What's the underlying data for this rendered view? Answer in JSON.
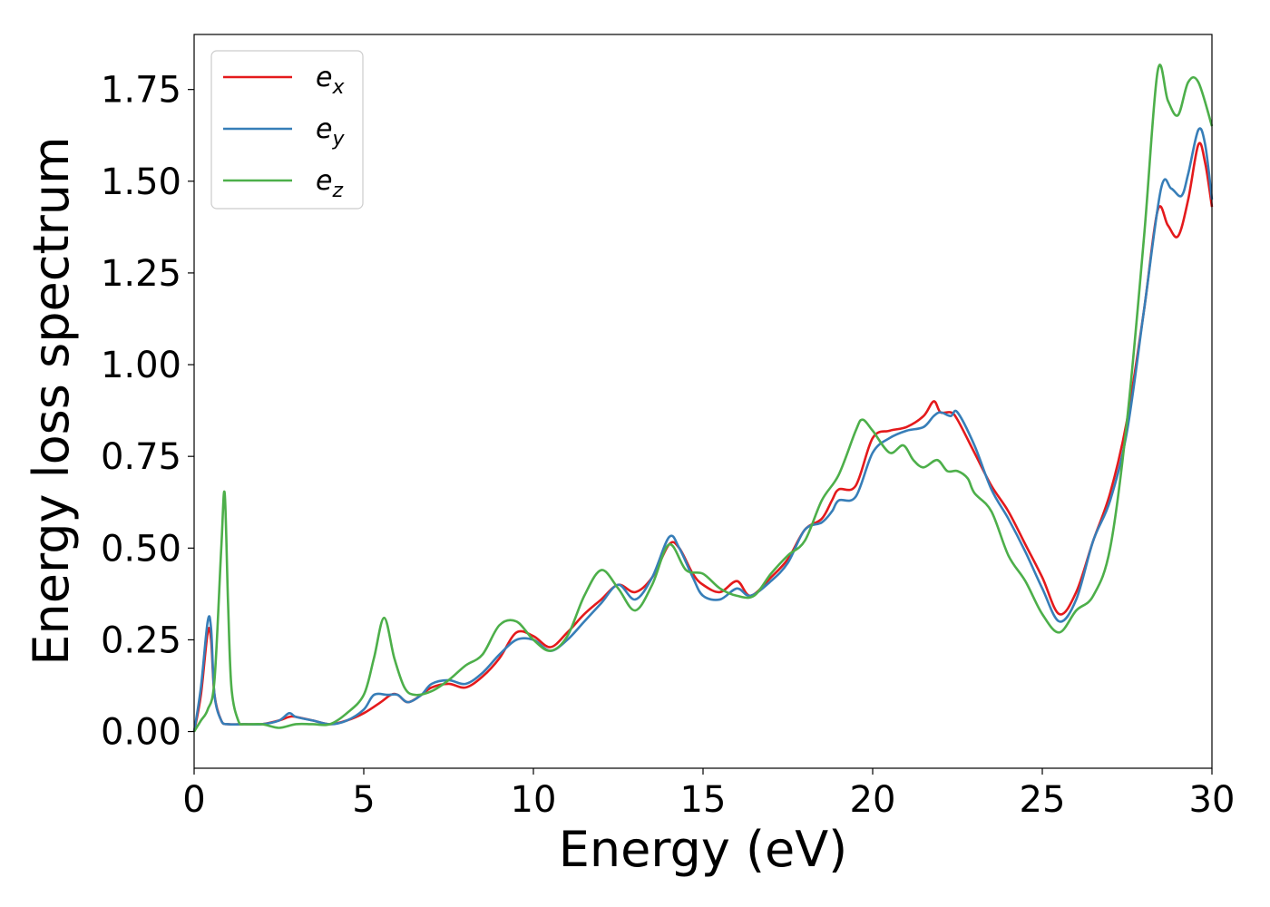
{
  "chart_data": {
    "type": "line",
    "xlabel": "Energy (eV)",
    "ylabel": "Energy loss spectrum",
    "xlim": [
      0,
      30
    ],
    "ylim": [
      -0.1,
      1.9
    ],
    "xticks": [
      0,
      5,
      10,
      15,
      20,
      25,
      30
    ],
    "xtick_labels": [
      "0",
      "5",
      "10",
      "15",
      "20",
      "25",
      "30"
    ],
    "yticks": [
      0.0,
      0.25,
      0.5,
      0.75,
      1.0,
      1.25,
      1.5,
      1.75
    ],
    "ytick_labels": [
      "0.00",
      "0.25",
      "0.50",
      "0.75",
      "1.00",
      "1.25",
      "1.50",
      "1.75"
    ],
    "grid": false,
    "legend_position": "top-left",
    "series": [
      {
        "name": "e",
        "subscript": "x",
        "color": "#e41a1c",
        "x": [
          0,
          0.2,
          0.4,
          0.5,
          0.6,
          0.8,
          1.0,
          1.5,
          2.0,
          2.5,
          2.8,
          3.0,
          3.5,
          4.0,
          4.5,
          5.0,
          5.5,
          5.8,
          6.0,
          6.3,
          6.7,
          7.0,
          7.5,
          8.0,
          8.5,
          9.0,
          9.5,
          10.0,
          10.5,
          11.0,
          11.5,
          12.0,
          12.5,
          13.0,
          13.5,
          14.0,
          14.3,
          14.7,
          15.0,
          15.5,
          16.0,
          16.4,
          17.0,
          17.5,
          18.0,
          18.5,
          18.8,
          19.0,
          19.5,
          20.0,
          20.5,
          21.0,
          21.5,
          21.8,
          22.0,
          22.3,
          22.5,
          23.0,
          23.5,
          24.0,
          24.5,
          25.0,
          25.5,
          26.0,
          26.5,
          27.0,
          27.5,
          28.0,
          28.4,
          28.7,
          29.0,
          29.3,
          29.6,
          29.8,
          30.0
        ],
        "values": [
          0.0,
          0.1,
          0.27,
          0.25,
          0.1,
          0.03,
          0.02,
          0.02,
          0.02,
          0.03,
          0.04,
          0.04,
          0.03,
          0.02,
          0.03,
          0.05,
          0.08,
          0.1,
          0.1,
          0.08,
          0.1,
          0.12,
          0.13,
          0.12,
          0.15,
          0.2,
          0.27,
          0.26,
          0.23,
          0.27,
          0.32,
          0.36,
          0.4,
          0.38,
          0.42,
          0.51,
          0.5,
          0.43,
          0.4,
          0.38,
          0.41,
          0.37,
          0.42,
          0.47,
          0.55,
          0.58,
          0.63,
          0.66,
          0.67,
          0.8,
          0.82,
          0.83,
          0.86,
          0.9,
          0.87,
          0.87,
          0.85,
          0.76,
          0.67,
          0.6,
          0.51,
          0.42,
          0.32,
          0.38,
          0.52,
          0.65,
          0.85,
          1.15,
          1.42,
          1.38,
          1.35,
          1.45,
          1.6,
          1.55,
          1.43
        ]
      },
      {
        "name": "e",
        "subscript": "y",
        "color": "#377eb8",
        "x": [
          0,
          0.2,
          0.4,
          0.5,
          0.6,
          0.8,
          1.0,
          1.5,
          2.0,
          2.5,
          2.8,
          3.0,
          3.5,
          4.0,
          4.5,
          5.0,
          5.3,
          5.7,
          6.0,
          6.3,
          6.7,
          7.0,
          7.5,
          8.0,
          8.5,
          9.0,
          9.5,
          10.0,
          10.5,
          11.0,
          11.5,
          12.0,
          12.5,
          13.0,
          13.5,
          14.0,
          14.3,
          14.7,
          15.0,
          15.5,
          16.0,
          16.4,
          17.0,
          17.5,
          18.0,
          18.5,
          18.8,
          19.0,
          19.5,
          20.0,
          20.5,
          21.0,
          21.5,
          21.8,
          22.0,
          22.3,
          22.5,
          23.0,
          23.5,
          24.0,
          24.5,
          25.0,
          25.5,
          26.0,
          26.5,
          27.0,
          27.5,
          28.0,
          28.5,
          28.8,
          29.1,
          29.3,
          29.6,
          29.8,
          30.0
        ],
        "values": [
          0.0,
          0.12,
          0.3,
          0.28,
          0.1,
          0.03,
          0.02,
          0.02,
          0.02,
          0.03,
          0.05,
          0.04,
          0.03,
          0.02,
          0.03,
          0.06,
          0.1,
          0.1,
          0.1,
          0.08,
          0.1,
          0.13,
          0.14,
          0.13,
          0.16,
          0.21,
          0.25,
          0.25,
          0.22,
          0.25,
          0.3,
          0.35,
          0.4,
          0.36,
          0.42,
          0.53,
          0.5,
          0.42,
          0.37,
          0.36,
          0.39,
          0.37,
          0.41,
          0.46,
          0.55,
          0.57,
          0.6,
          0.63,
          0.64,
          0.76,
          0.8,
          0.82,
          0.83,
          0.86,
          0.87,
          0.86,
          0.87,
          0.78,
          0.66,
          0.58,
          0.49,
          0.39,
          0.3,
          0.36,
          0.52,
          0.63,
          0.82,
          1.15,
          1.48,
          1.48,
          1.46,
          1.52,
          1.64,
          1.6,
          1.45
        ]
      },
      {
        "name": "e",
        "subscript": "z",
        "color": "#4daf4a",
        "x": [
          0,
          0.2,
          0.4,
          0.6,
          0.8,
          0.9,
          1.0,
          1.1,
          1.3,
          1.5,
          2.0,
          2.5,
          3.0,
          3.5,
          4.0,
          4.5,
          5.0,
          5.3,
          5.6,
          5.9,
          6.2,
          6.5,
          7.0,
          7.5,
          8.0,
          8.5,
          9.0,
          9.5,
          10.0,
          10.5,
          11.0,
          11.5,
          12.0,
          12.5,
          13.0,
          13.5,
          14.0,
          14.5,
          15.0,
          15.5,
          16.0,
          16.5,
          17.0,
          17.5,
          18.0,
          18.5,
          19.0,
          19.5,
          19.7,
          20.0,
          20.5,
          20.9,
          21.2,
          21.5,
          21.9,
          22.2,
          22.5,
          22.8,
          23.0,
          23.5,
          24.0,
          24.5,
          25.0,
          25.5,
          26.0,
          26.5,
          27.0,
          27.5,
          28.0,
          28.4,
          28.7,
          29.0,
          29.3,
          29.6,
          30.0
        ],
        "values": [
          0.0,
          0.03,
          0.06,
          0.14,
          0.5,
          0.65,
          0.35,
          0.12,
          0.03,
          0.02,
          0.02,
          0.01,
          0.02,
          0.02,
          0.02,
          0.05,
          0.1,
          0.2,
          0.31,
          0.2,
          0.12,
          0.1,
          0.11,
          0.14,
          0.18,
          0.21,
          0.29,
          0.3,
          0.25,
          0.22,
          0.26,
          0.37,
          0.44,
          0.39,
          0.33,
          0.4,
          0.51,
          0.44,
          0.43,
          0.39,
          0.37,
          0.37,
          0.43,
          0.48,
          0.52,
          0.63,
          0.7,
          0.82,
          0.85,
          0.82,
          0.76,
          0.78,
          0.74,
          0.72,
          0.74,
          0.71,
          0.71,
          0.69,
          0.65,
          0.6,
          0.48,
          0.41,
          0.32,
          0.27,
          0.33,
          0.37,
          0.5,
          0.85,
          1.35,
          1.8,
          1.72,
          1.68,
          1.77,
          1.77,
          1.65
        ]
      }
    ]
  }
}
